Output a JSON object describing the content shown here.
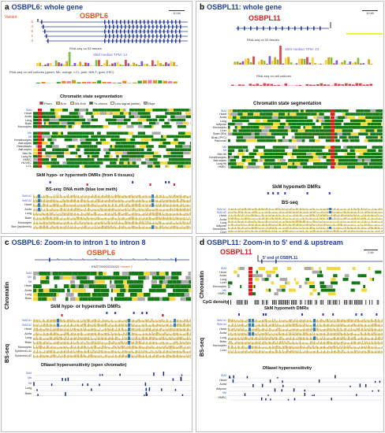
{
  "colors": {
    "title_blue": "#1f3f9a",
    "gene_orange": "#e8501c",
    "promoter_red": "#e31a1c",
    "enhancer_yellow": "#f4d83a",
    "transcribed_green": "#137a13",
    "repressed_gray": "#a9a9a9",
    "bs_gold": "#c9a227",
    "bs_blue": "#2f7fc7",
    "dmr_blue": "#2b3bd1",
    "dnase_navy": "#1b2a7a",
    "highlight_yellow": "#f5f03a"
  },
  "panel_a": {
    "letter": "a",
    "title": "OSBPL6: whole gene",
    "gene": "OSBPL6",
    "variant_label": "Variant",
    "variant_numbers": [
      "6",
      "4",
      "5",
      "1",
      "3"
    ],
    "scale": "10 kb",
    "rnaseq_tissues": "RNA-seq on 53 tissues",
    "skm_tpm": "SkM median TPM: 14",
    "rnaseq_cells": "RNA-seq on cell cultures (green, Mb; orange, LCL; pink, NHLF; gold, ESC)",
    "chromatin_title": "Chromatin state segmentation",
    "legend": [
      {
        "label": "Prom.",
        "color": "#e31a1c"
      },
      {
        "label": "Enh.",
        "color": "#f4b63a"
      },
      {
        "label": "Wk Enh",
        "color": "#f4e57a"
      },
      {
        "label": "Tx-chrom",
        "color": "#137a13"
      },
      {
        "label": "Low signal (white)",
        "color": "#ffffff"
      },
      {
        "label": "Repr",
        "color": "#a9a9a9"
      }
    ],
    "chrom_rows": [
      "SkM",
      "Heart",
      "Aorta",
      "Lung",
      "Brain",
      "Monocytes",
      "",
      "Mb",
      "Mt",
      "Keratinocytes",
      "Astrocytes",
      "Osteoblasts",
      "Astrocytes",
      "Skin fib",
      "Lung fib",
      "HMEC",
      "HUVEC",
      "LCL"
    ],
    "dmr_title": "SkM hypo- or hypermeth DMRs (from 6 tissues)",
    "dmr_hypo": "hypo",
    "dmr_hyper": "hyper",
    "bs_title": "BS-seq: DNA meth (blue low meth)",
    "bs_rows": [
      "SkM #1",
      "SkM #2",
      "Heart",
      "Aorta",
      "Lung",
      "Brain",
      "Monocytes",
      "Skin (epidermis)"
    ]
  },
  "panel_b": {
    "letter": "b",
    "title": "OSBPL11: whole gene",
    "gene": "OSBPL11",
    "scale": "10 kb",
    "rnaseq_tissues": "RNA-seq on 53 tissues",
    "skm_tpm": "SkM median TPM: 43",
    "rnaseq_cells": "RNA-seq on cell cultures",
    "chromatin_title": "Chromatin state segmentation",
    "chrom_rows": [
      "SkM",
      "Heart",
      "Aorta",
      "Lung",
      "Adipose",
      "Monocytes",
      "Liver",
      "Brain (SN)",
      "Brain (PFC)",
      "Pancreas",
      "",
      "Mb",
      "Mt",
      "Skin fib",
      "Keratinocytes",
      "Astrocytes",
      "Lung fib",
      "HMEC"
    ],
    "dmr_title": "SkM hypometh DMRs",
    "dmr_hypo": "hypo",
    "bs_title": "BS-seq",
    "bs_rows": [
      "SkM #1",
      "SkM #2",
      "Heart",
      "Aorta",
      "Lung",
      "Adipose",
      "Monocytes",
      "Liver"
    ]
  },
  "panel_c": {
    "letter": "c",
    "title": "OSBPL6: Zoom-in to intron 1 to intron 8",
    "gene": "OSBPL6",
    "transcript": "ENST00000315022",
    "variant": "Variant 2",
    "side_chromatin": "Chromatin",
    "side_bs": "BS-seq",
    "chrom_rows": [
      "SkM",
      "Mb",
      "Mt",
      "Heart",
      "Aorta",
      "Lung",
      "Brain"
    ],
    "dmr_title": "SkM hypo- or hypermeth DMRs",
    "bs_rows": [
      "SkM #1",
      "SkM #2",
      "Heart",
      "Aorta",
      "Lung",
      "Brain",
      "Monocytes",
      "Epidermis #1",
      "Epidermis #2"
    ],
    "dnase_title": "DNaseI hypersensitivity (open chromatin)",
    "dnase_rows": [
      "SkM",
      "Mb",
      "Mt",
      "Lung",
      "Brain"
    ]
  },
  "panel_d": {
    "letter": "d",
    "title": "OSBPL11: Zoom-in to 5' end & upstream",
    "gene": "OSBPL11",
    "five_prime": "5' end of OSBPL11",
    "scale": "2 kb",
    "side_chromatin": "Chromatin",
    "side_bs": "BS-seq",
    "chrom_rows": [
      "SkM",
      "Heart",
      "Aorta",
      "Lung",
      "Liver",
      "Monocytes",
      "Mb",
      "HMEC"
    ],
    "cpg_title": "CpG density",
    "dmr_title": "SkM hypometh DMRs",
    "bs_rows": [
      "SkM #1",
      "SkM #2",
      "Heart",
      "Aorta",
      "Lung",
      "Brain",
      "Monocytes",
      "Liver"
    ],
    "dnase_title": "DNaseI hypersensitivity",
    "dnase_rows": [
      "SkM",
      "Heart",
      "Aorta",
      "Adipose",
      "Mb",
      "HMEC"
    ]
  }
}
